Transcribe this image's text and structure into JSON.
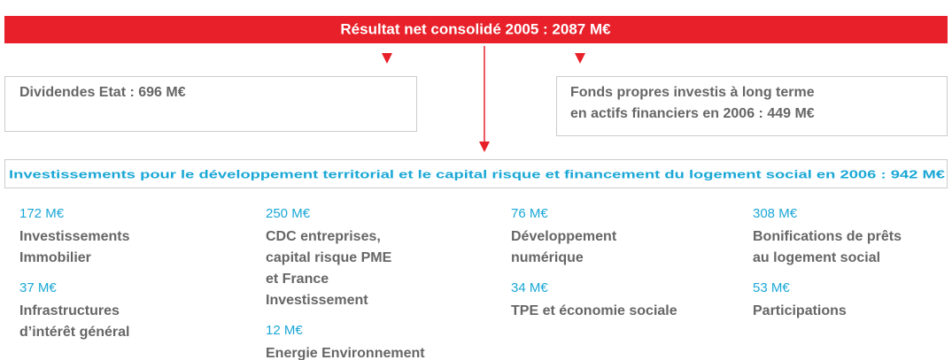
{
  "banner": "Résultat net consolidé 2005 : 2087 M€",
  "left_box": "Dividendes Etat : 696 M€",
  "right_box": [
    "Fonds propres investis à long terme",
    "en actifs financiers en 2006 : 449 M€"
  ],
  "bottom_box": "Investissements pour le développement territorial et le capital risque et financement du logement social en 2006 : 942 M€",
  "columns": [
    [
      {
        "amount": "172 M€",
        "label": [
          "Investissements",
          "Immobilier"
        ]
      },
      {
        "amount": "37 M€",
        "label": [
          "Infrastructures",
          "d’intérêt général"
        ]
      }
    ],
    [
      {
        "amount": "250 M€",
        "label": [
          "CDC entreprises,",
          "capital risque PME",
          "et France",
          "Investissement"
        ]
      },
      {
        "amount": "12 M€",
        "label": [
          "Energie Environnement"
        ]
      }
    ],
    [
      {
        "amount": "76 M€",
        "label": [
          "Développement",
          "numérique"
        ]
      },
      {
        "amount": "34 M€",
        "label": [
          "TPE et économie sociale"
        ]
      }
    ],
    [
      {
        "amount": "308 M€",
        "label": [
          "Bonifications de prêts",
          "au logement social"
        ]
      },
      {
        "amount": "53 M€",
        "label": [
          "Participations"
        ]
      }
    ]
  ]
}
